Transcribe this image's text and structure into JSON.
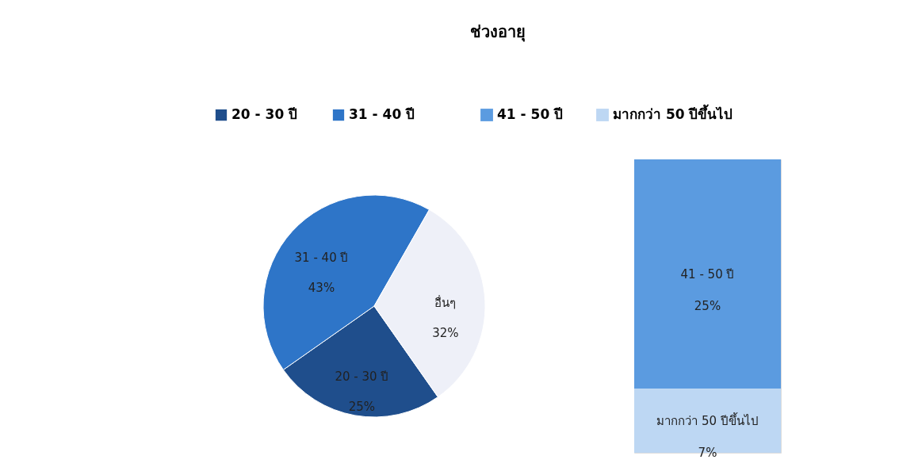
{
  "chart_data": [
    {
      "type": "pie",
      "title": "ช่วงอายุ",
      "legend": "top",
      "categories": [
        "20 - 30 ปี",
        "31 - 40 ปี",
        "อื่นๆ"
      ],
      "values": [
        25,
        43,
        32
      ],
      "value_labels": [
        "25%",
        "43%",
        "32%"
      ],
      "colors": [
        "#1f4e8c",
        "#2e75c8",
        "#eef0f8"
      ]
    },
    {
      "type": "bar",
      "stacked": true,
      "legend": "top",
      "tick_labels": false,
      "categories": [
        null
      ],
      "series": [
        {
          "name": "มากกว่า 50 ปีขึ้นไป",
          "color": "#bdd7f3",
          "values": [
            7
          ],
          "value_labels": [
            "7%"
          ]
        },
        {
          "name": "41 - 50 ปี",
          "color": "#5b9be0",
          "values": [
            25
          ],
          "value_labels": [
            "25%"
          ]
        }
      ]
    }
  ]
}
